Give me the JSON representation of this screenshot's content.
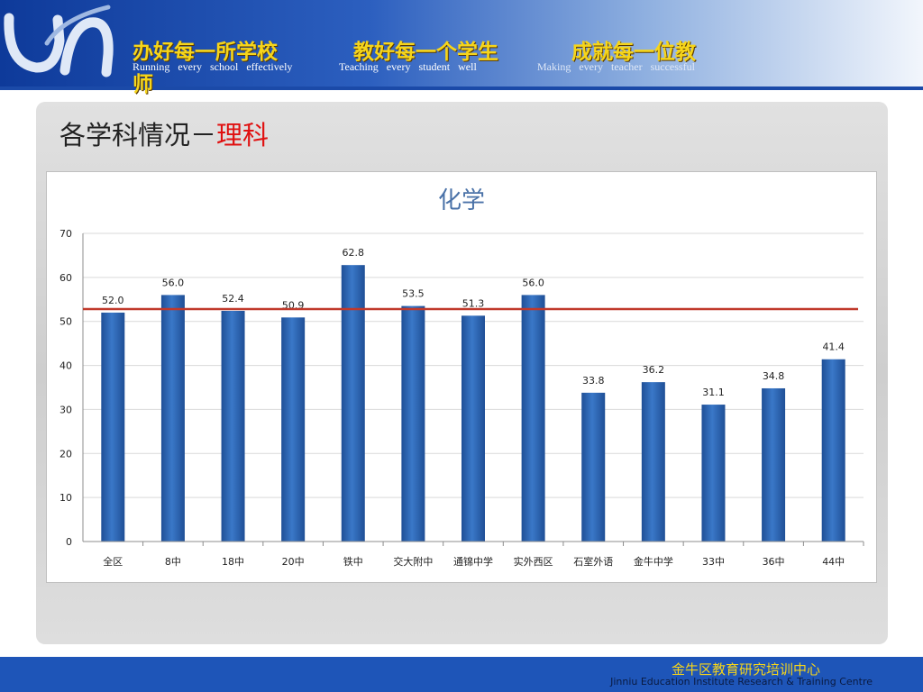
{
  "header": {
    "slogans_cn": [
      "办好每一所学校",
      "教好每一个学生",
      "成就每一位教",
      "师"
    ],
    "slogans_en": [
      "Running every school effectively",
      "Teaching every student well",
      "Making every teacher successful"
    ]
  },
  "section": {
    "title_prefix": "各学科情况－",
    "title_highlight": "理科"
  },
  "colors": {
    "bar": "#3a78c8",
    "bar_dark": "#1f4f96",
    "avg_line": "#c0392b",
    "title": "#4a72a8"
  },
  "chart_data": {
    "type": "bar",
    "title": "化学",
    "categories": [
      "全区",
      "8中",
      "18中",
      "20中",
      "铁中",
      "交大附中",
      "通锦中学",
      "实外西区",
      "石室外语",
      "金牛中学",
      "33中",
      "36中",
      "44中"
    ],
    "values": [
      52.0,
      56.0,
      52.4,
      50.9,
      62.8,
      53.5,
      51.3,
      56.0,
      33.8,
      36.2,
      31.1,
      34.8,
      41.4
    ],
    "value_labels": [
      "52.0",
      "56.0",
      "52.4",
      "50.9",
      "62.8",
      "53.5",
      "51.3",
      "56.0",
      "33.8",
      "36.2",
      "31.1",
      "34.8",
      "41.4"
    ],
    "reference_line": 52.0,
    "ylim": [
      0,
      70
    ],
    "yticks": [
      "0",
      "10",
      "20",
      "30",
      "40",
      "50",
      "60",
      "70"
    ],
    "grid": true,
    "legend": "none"
  },
  "footer": {
    "org_cn": "金牛区教育研究培训中心",
    "org_en": "Jinniu Education Institute Research & Training Centre"
  }
}
